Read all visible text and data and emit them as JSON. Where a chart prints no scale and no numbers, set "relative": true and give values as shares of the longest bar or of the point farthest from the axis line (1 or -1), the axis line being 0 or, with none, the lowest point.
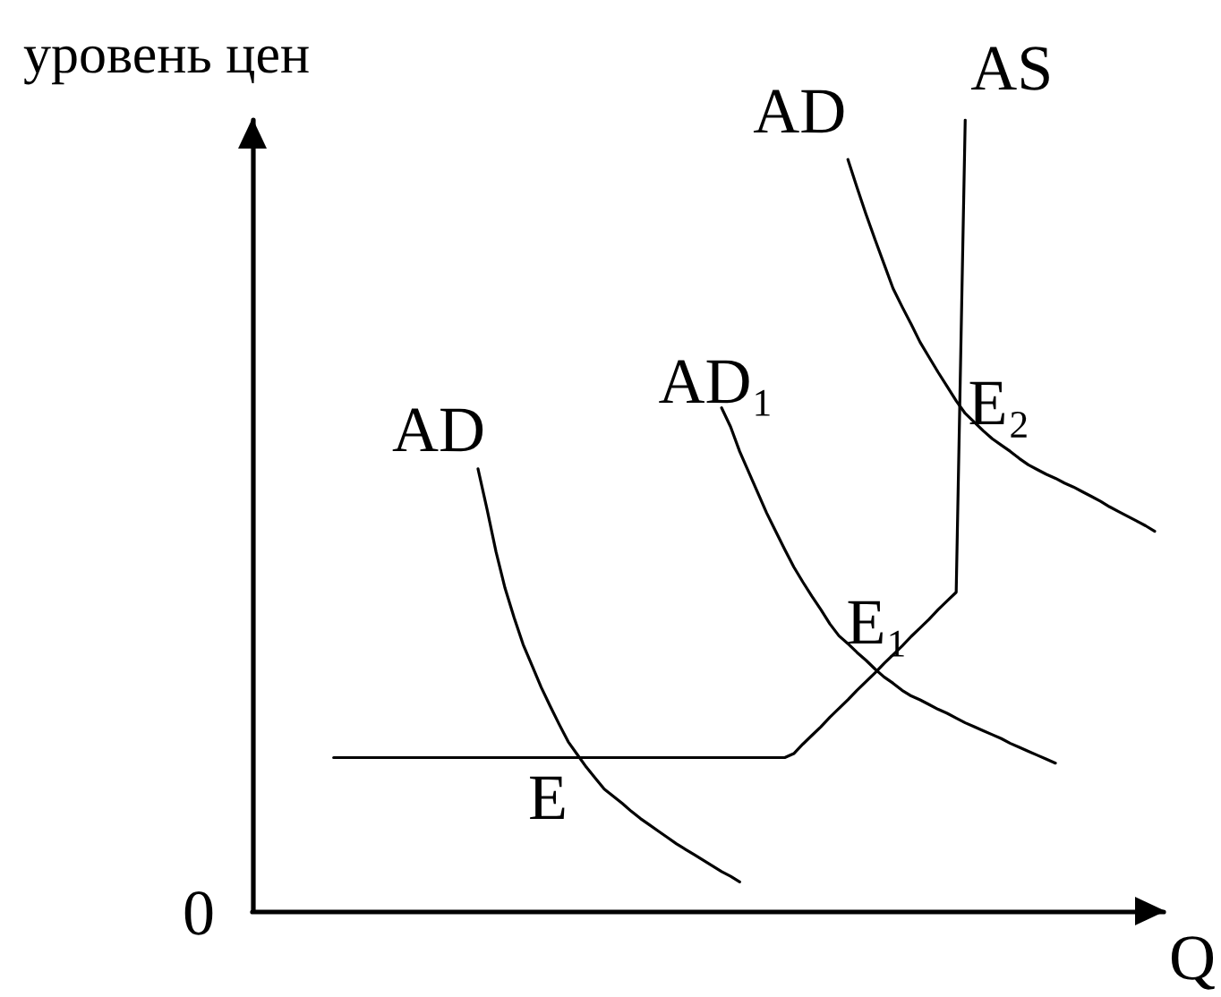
{
  "chart_data": {
    "type": "line",
    "relative": true,
    "ylabel": "уровень цен",
    "xlabel": "Q",
    "marker": "none",
    "categories": [
      null,
      null,
      null,
      null,
      null,
      null,
      null,
      null,
      null,
      null,
      null,
      null,
      null,
      null,
      null,
      null,
      null,
      null,
      null,
      null,
      null,
      null,
      null,
      null,
      null,
      null,
      null,
      null,
      null,
      null,
      null,
      null,
      null,
      null,
      null,
      null,
      null,
      null,
      null,
      null,
      null,
      null,
      null,
      null,
      null,
      null,
      null,
      null,
      null,
      null,
      null,
      null,
      null,
      null,
      null,
      null,
      null,
      null,
      null,
      null,
      null,
      null,
      null,
      null,
      null,
      null,
      null,
      null,
      null,
      null,
      null,
      null,
      null,
      null,
      null,
      null,
      null,
      null,
      null,
      null,
      null,
      null,
      null,
      null,
      null,
      null,
      null,
      null,
      null,
      null,
      null,
      null,
      null,
      null,
      null,
      null,
      null,
      null,
      null,
      null,
      null,
      null
    ],
    "series": [
      {
        "name": "AS",
        "color": "#000000",
        "values": [
          null,
          null,
          null,
          null,
          null,
          null,
          null,
          null,
          null,
          0.194,
          0.194,
          0.194,
          0.194,
          0.194,
          0.194,
          0.194,
          0.194,
          0.194,
          0.194,
          0.194,
          0.194,
          0.194,
          0.194,
          0.194,
          0.194,
          0.194,
          0.194,
          0.194,
          0.194,
          0.194,
          0.194,
          0.194,
          0.194,
          0.194,
          0.194,
          0.194,
          0.194,
          0.194,
          0.194,
          0.194,
          0.194,
          0.194,
          0.194,
          0.194,
          0.194,
          0.194,
          0.194,
          0.194,
          0.194,
          0.194,
          0.194,
          0.194,
          0.194,
          0.194,
          0.194,
          0.194,
          0.194,
          0.194,
          0.194,
          0.194,
          0.199,
          0.211,
          0.222,
          0.233,
          0.245,
          0.256,
          0.267,
          0.279,
          0.29,
          0.301,
          0.313,
          0.324,
          0.335,
          0.347,
          0.358,
          0.369,
          0.381,
          0.392,
          0.403,
          1,
          null,
          null,
          null,
          null,
          null,
          null,
          null,
          null,
          null,
          null,
          null,
          null,
          null,
          null,
          null,
          null,
          null,
          null,
          null,
          null,
          null,
          null
        ]
      },
      {
        "name": "AD",
        "color": "#000000",
        "values": [
          null,
          null,
          null,
          null,
          null,
          null,
          null,
          null,
          null,
          null,
          null,
          null,
          null,
          null,
          null,
          null,
          null,
          null,
          null,
          null,
          null,
          null,
          null,
          null,
          null,
          0.559,
          0.508,
          0.454,
          0.408,
          0.371,
          0.337,
          0.31,
          0.283,
          0.259,
          0.236,
          0.214,
          0.198,
          0.182,
          0.168,
          0.154,
          0.145,
          0.136,
          0.126,
          0.117,
          0.109,
          0.101,
          0.093,
          0.085,
          0.078,
          0.071,
          0.064,
          0.057,
          0.05,
          0.044,
          0.037,
          null,
          null,
          null,
          null,
          null,
          null,
          null,
          null,
          null,
          null,
          null,
          null,
          null,
          null,
          null,
          null,
          null,
          null,
          null,
          null,
          null,
          null,
          null,
          null,
          null,
          null,
          null,
          null,
          null,
          null,
          null,
          null,
          null,
          null,
          null,
          null,
          null,
          null,
          null,
          null,
          null,
          null,
          null,
          null,
          null,
          null,
          null
        ]
      },
      {
        "name": "AD₁",
        "color": "#000000",
        "values": [
          null,
          null,
          null,
          null,
          null,
          null,
          null,
          null,
          null,
          null,
          null,
          null,
          null,
          null,
          null,
          null,
          null,
          null,
          null,
          null,
          null,
          null,
          null,
          null,
          null,
          null,
          null,
          null,
          null,
          null,
          null,
          null,
          null,
          null,
          null,
          null,
          null,
          null,
          null,
          null,
          null,
          null,
          null,
          null,
          null,
          null,
          null,
          null,
          null,
          null,
          null,
          null,
          0.636,
          0.612,
          0.581,
          0.555,
          0.529,
          0.503,
          0.48,
          0.457,
          0.435,
          0.416,
          0.398,
          0.381,
          0.363,
          0.348,
          0.338,
          0.327,
          0.317,
          0.306,
          0.296,
          0.288,
          0.279,
          0.272,
          0.267,
          0.261,
          0.255,
          0.25,
          0.244,
          0.238,
          0.233,
          0.228,
          0.223,
          0.218,
          0.212,
          0.207,
          0.202,
          0.197,
          0.192,
          0.187,
          null,
          null,
          null,
          null,
          null,
          null,
          null,
          null,
          null,
          null,
          null,
          null
        ]
      },
      {
        "name": "AD",
        "color": "#000000",
        "values": [
          null,
          null,
          null,
          null,
          null,
          null,
          null,
          null,
          null,
          null,
          null,
          null,
          null,
          null,
          null,
          null,
          null,
          null,
          null,
          null,
          null,
          null,
          null,
          null,
          null,
          null,
          null,
          null,
          null,
          null,
          null,
          null,
          null,
          null,
          null,
          null,
          null,
          null,
          null,
          null,
          null,
          null,
          null,
          null,
          null,
          null,
          null,
          null,
          null,
          null,
          null,
          null,
          null,
          null,
          null,
          null,
          null,
          null,
          null,
          null,
          null,
          null,
          null,
          null,
          null,
          null,
          0.95,
          0.915,
          0.881,
          0.849,
          0.818,
          0.787,
          0.764,
          0.742,
          0.719,
          0.7,
          0.681,
          0.663,
          0.645,
          0.629,
          0.618,
          0.607,
          0.597,
          0.589,
          0.581,
          0.572,
          0.564,
          0.558,
          0.552,
          0.547,
          0.541,
          0.536,
          0.53,
          0.524,
          0.518,
          0.511,
          0.505,
          0.499,
          0.493,
          0.487,
          0.48,
          null
        ]
      }
    ],
    "annotations": [
      "0",
      {
        "text": "E",
        "y": 0.194
      },
      {
        "text": "E₁",
        "y": 0.3
      },
      "E₂"
    ]
  }
}
